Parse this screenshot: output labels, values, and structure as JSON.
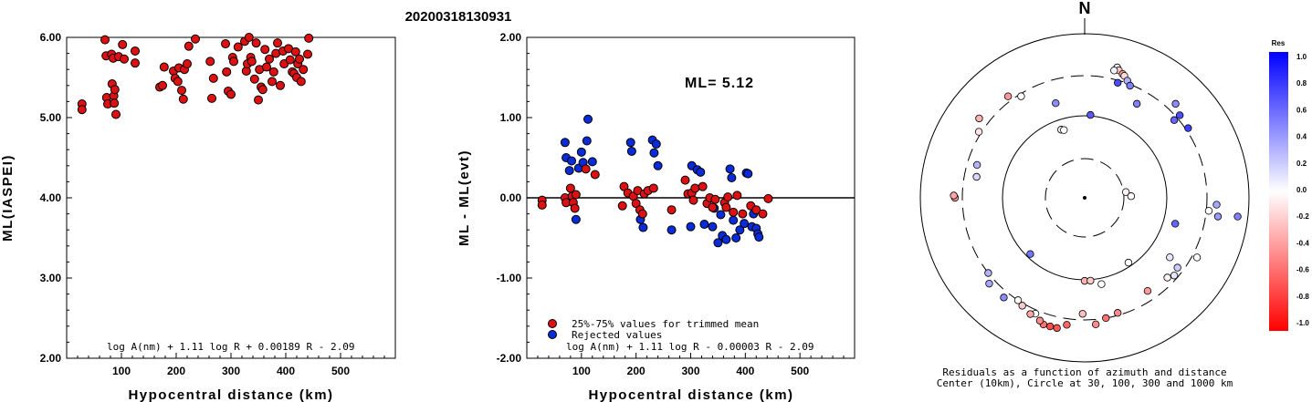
{
  "title": "20200318130931",
  "chart_data": [
    {
      "type": "scatter",
      "ylabel": "ML(IASPEI)",
      "xlabel": "Hypocentral distance (km)",
      "xlim": [
        0,
        600
      ],
      "ylim": [
        2.0,
        6.0
      ],
      "xticks": [
        "100",
        "200",
        "300",
        "400",
        "500"
      ],
      "yticks": [
        "2.00",
        "3.00",
        "4.00",
        "5.00",
        "6.00"
      ],
      "formula": "log A(nm) + 1.11 log R + 0.00189 R - 2.09",
      "points_color": "#dd1111",
      "points": [
        [
          28,
          5.17
        ],
        [
          28,
          5.1
        ],
        [
          70,
          5.97
        ],
        [
          72,
          5.77
        ],
        [
          73,
          5.25
        ],
        [
          75,
          5.17
        ],
        [
          82,
          5.79
        ],
        [
          83,
          5.42
        ],
        [
          85,
          5.74
        ],
        [
          86,
          5.27
        ],
        [
          87,
          5.18
        ],
        [
          88,
          5.35
        ],
        [
          90,
          5.04
        ],
        [
          95,
          5.76
        ],
        [
          102,
          5.91
        ],
        [
          105,
          5.73
        ],
        [
          125,
          5.83
        ],
        [
          125,
          5.68
        ],
        [
          170,
          5.38
        ],
        [
          175,
          5.4
        ],
        [
          178,
          5.63
        ],
        [
          195,
          5.58
        ],
        [
          198,
          5.49
        ],
        [
          203,
          5.45
        ],
        [
          205,
          5.62
        ],
        [
          210,
          5.34
        ],
        [
          213,
          5.23
        ],
        [
          215,
          5.6
        ],
        [
          220,
          5.67
        ],
        [
          223,
          5.89
        ],
        [
          235,
          5.98
        ],
        [
          262,
          5.7
        ],
        [
          265,
          5.24
        ],
        [
          268,
          5.49
        ],
        [
          290,
          5.92
        ],
        [
          292,
          5.57
        ],
        [
          295,
          5.33
        ],
        [
          300,
          5.29
        ],
        [
          303,
          5.75
        ],
        [
          305,
          5.7
        ],
        [
          313,
          5.88
        ],
        [
          325,
          5.95
        ],
        [
          328,
          5.58
        ],
        [
          330,
          5.67
        ],
        [
          333,
          6.0
        ],
        [
          336,
          5.75
        ],
        [
          338,
          5.7
        ],
        [
          343,
          5.48
        ],
        [
          346,
          5.93
        ],
        [
          350,
          5.22
        ],
        [
          352,
          5.6
        ],
        [
          355,
          5.38
        ],
        [
          358,
          5.35
        ],
        [
          362,
          5.85
        ],
        [
          365,
          5.63
        ],
        [
          370,
          5.73
        ],
        [
          375,
          5.45
        ],
        [
          378,
          5.57
        ],
        [
          382,
          5.8
        ],
        [
          385,
          5.93
        ],
        [
          390,
          5.4
        ],
        [
          395,
          5.83
        ],
        [
          397,
          5.67
        ],
        [
          405,
          5.86
        ],
        [
          408,
          5.72
        ],
        [
          412,
          5.57
        ],
        [
          415,
          5.55
        ],
        [
          418,
          5.82
        ],
        [
          420,
          5.5
        ],
        [
          422,
          5.67
        ],
        [
          425,
          5.73
        ],
        [
          428,
          5.45
        ],
        [
          432,
          5.6
        ],
        [
          440,
          5.79
        ],
        [
          442,
          5.99
        ]
      ]
    },
    {
      "type": "scatter",
      "ylabel": "ML - ML(evt)",
      "xlabel": "Hypocentral distance (km)",
      "xlim": [
        0,
        600
      ],
      "ylim": [
        -2.0,
        2.0
      ],
      "xticks": [
        "100",
        "200",
        "300",
        "400",
        "500"
      ],
      "yticks": [
        "-2.00",
        "-1.00",
        "0.00",
        "1.00",
        "2.00"
      ],
      "ml_label": "ML= 5.12",
      "legend": [
        "25%-75% values for trimmed mean",
        "Rejected values"
      ],
      "legend_colors": [
        "#dd1111",
        "#0a2bd8"
      ],
      "formula": "log A(nm) + 1.11 log R - 0.00003 R - 2.09",
      "trimmed": [
        [
          28,
          -0.03
        ],
        [
          28,
          -0.09
        ],
        [
          70,
          0.0
        ],
        [
          72,
          -0.06
        ],
        [
          80,
          0.12
        ],
        [
          83,
          0.02
        ],
        [
          85,
          -0.06
        ],
        [
          88,
          -0.13
        ],
        [
          90,
          0.04
        ],
        [
          108,
          0.36
        ],
        [
          125,
          0.29
        ],
        [
          175,
          -0.1
        ],
        [
          178,
          0.14
        ],
        [
          185,
          0.06
        ],
        [
          195,
          0.02
        ],
        [
          200,
          -0.07
        ],
        [
          203,
          0.09
        ],
        [
          207,
          -0.15
        ],
        [
          212,
          -0.2
        ],
        [
          215,
          0.05
        ],
        [
          222,
          0.09
        ],
        [
          232,
          0.12
        ],
        [
          265,
          -0.15
        ],
        [
          290,
          0.22
        ],
        [
          295,
          0.05
        ],
        [
          302,
          0.06
        ],
        [
          305,
          -0.03
        ],
        [
          308,
          0.12
        ],
        [
          322,
          0.14
        ],
        [
          330,
          -0.07
        ],
        [
          335,
          0.0
        ],
        [
          340,
          -0.12
        ],
        [
          345,
          -0.02
        ],
        [
          362,
          -0.06
        ],
        [
          365,
          -0.12
        ],
        [
          368,
          0.01
        ],
        [
          378,
          -0.18
        ],
        [
          385,
          0.03
        ],
        [
          395,
          -0.2
        ],
        [
          410,
          -0.1
        ],
        [
          420,
          -0.15
        ],
        [
          432,
          -0.2
        ],
        [
          442,
          -0.01
        ]
      ],
      "rejected": [
        [
          70,
          0.69
        ],
        [
          72,
          0.5
        ],
        [
          78,
          0.34
        ],
        [
          82,
          0.46
        ],
        [
          90,
          -0.27
        ],
        [
          95,
          0.37
        ],
        [
          100,
          0.57
        ],
        [
          103,
          0.44
        ],
        [
          110,
          0.71
        ],
        [
          112,
          0.98
        ],
        [
          120,
          0.45
        ],
        [
          190,
          0.69
        ],
        [
          192,
          0.58
        ],
        [
          208,
          -0.27
        ],
        [
          213,
          -0.37
        ],
        [
          230,
          0.72
        ],
        [
          233,
          0.56
        ],
        [
          237,
          0.67
        ],
        [
          240,
          0.4
        ],
        [
          265,
          -0.4
        ],
        [
          300,
          -0.36
        ],
        [
          302,
          0.4
        ],
        [
          312,
          0.35
        ],
        [
          318,
          0.32
        ],
        [
          325,
          -0.33
        ],
        [
          340,
          -0.36
        ],
        [
          343,
          -0.13
        ],
        [
          350,
          -0.56
        ],
        [
          355,
          -0.21
        ],
        [
          358,
          -0.47
        ],
        [
          365,
          -0.52
        ],
        [
          372,
          0.36
        ],
        [
          375,
          0.25
        ],
        [
          378,
          -0.28
        ],
        [
          383,
          -0.5
        ],
        [
          390,
          -0.4
        ],
        [
          398,
          -0.32
        ],
        [
          402,
          0.31
        ],
        [
          405,
          0.3
        ],
        [
          412,
          -0.36
        ],
        [
          415,
          -0.2
        ],
        [
          420,
          -0.38
        ],
        [
          423,
          -0.45
        ],
        [
          425,
          -0.49
        ]
      ]
    },
    {
      "type": "scatter",
      "chart_kind": "polar",
      "north_label": "N",
      "caption_1": "Residuals as a function of azimuth and distance",
      "caption_2": "Center (10km), Circle at 30, 100, 300 and 1000 km",
      "colorbar_title": "Res",
      "colorbar_ticks": [
        "1.0",
        "0.8",
        "0.6",
        "0.4",
        "0.2",
        "0.0",
        "-0.2",
        "-0.4",
        "-0.6",
        "-0.8",
        "-1.0"
      ],
      "colorbar_range": [
        -1.0,
        1.0
      ],
      "stations": [
        [
          14,
          1.1,
          -0.05
        ],
        [
          15,
          1.08,
          -0.2
        ],
        [
          17,
          1.06,
          -0.4
        ],
        [
          18,
          1.05,
          -0.15
        ],
        [
          20,
          1.02,
          0.3
        ],
        [
          22,
          0.99,
          0.5
        ],
        [
          13,
          1.07,
          0.05
        ],
        [
          16,
          0.98,
          0.7
        ],
        [
          44,
          1.07,
          0.45
        ],
        [
          49,
          0.97,
          0.6
        ],
        [
          49,
          1.03,
          0.7
        ],
        [
          56,
          1.02,
          0.75
        ],
        [
          29,
          0.88,
          0.5
        ],
        [
          96,
          1.02,
          0.0
        ],
        [
          93,
          1.08,
          0.35
        ],
        [
          98,
          1.1,
          0.4
        ],
        [
          97,
          1.26,
          0.5
        ],
        [
          106,
          0.77,
          0.6
        ],
        [
          82,
          0.34,
          -0.05
        ],
        [
          88,
          0.38,
          0.0
        ],
        [
          118,
          1.04,
          0.0
        ],
        [
          127,
          0.95,
          0.2
        ],
        [
          131,
          0.97,
          0.1
        ],
        [
          134,
          0.94,
          -0.05
        ],
        [
          125,
          0.85,
          0.1
        ],
        [
          146,
          0.92,
          -0.4
        ],
        [
          146,
          0.64,
          0.0
        ],
        [
          164,
          0.98,
          -0.45
        ],
        [
          170,
          1.0,
          -0.55
        ],
        [
          175,
          1.04,
          -0.45
        ],
        [
          181,
          0.95,
          -0.25
        ],
        [
          188,
          1.05,
          -0.6
        ],
        [
          192,
          1.09,
          -0.65
        ],
        [
          195,
          1.09,
          -0.7
        ],
        [
          198,
          1.09,
          -0.55
        ],
        [
          200,
          1.07,
          -0.45
        ],
        [
          203,
          1.03,
          0.0
        ],
        [
          205,
          1.05,
          -0.35
        ],
        [
          210,
          1.02,
          -0.2
        ],
        [
          213,
          1.0,
          0.0
        ],
        [
          219,
          1.05,
          0.45
        ],
        [
          228,
          1.05,
          0.35
        ],
        [
          232,
          1.0,
          0.3
        ],
        [
          180,
          0.68,
          -0.3
        ],
        [
          176,
          0.68,
          -0.2
        ],
        [
          169,
          0.72,
          0.0
        ],
        [
          224,
          0.64,
          0.55
        ],
        [
          270,
          1.06,
          -0.4
        ],
        [
          271,
          1.07,
          -0.35
        ],
        [
          287,
          0.92,
          0.3
        ],
        [
          281,
          0.9,
          0.15
        ],
        [
          302,
          1.02,
          -0.1
        ],
        [
          307,
          1.08,
          -0.3
        ],
        [
          323,
          1.04,
          -0.4
        ],
        [
          328,
          0.98,
          0.0
        ],
        [
          343,
          0.81,
          0.45
        ],
        [
          341,
          0.59,
          0.05
        ],
        [
          343,
          0.58,
          0.0
        ],
        [
          4,
          0.68,
          0.65
        ]
      ]
    }
  ]
}
